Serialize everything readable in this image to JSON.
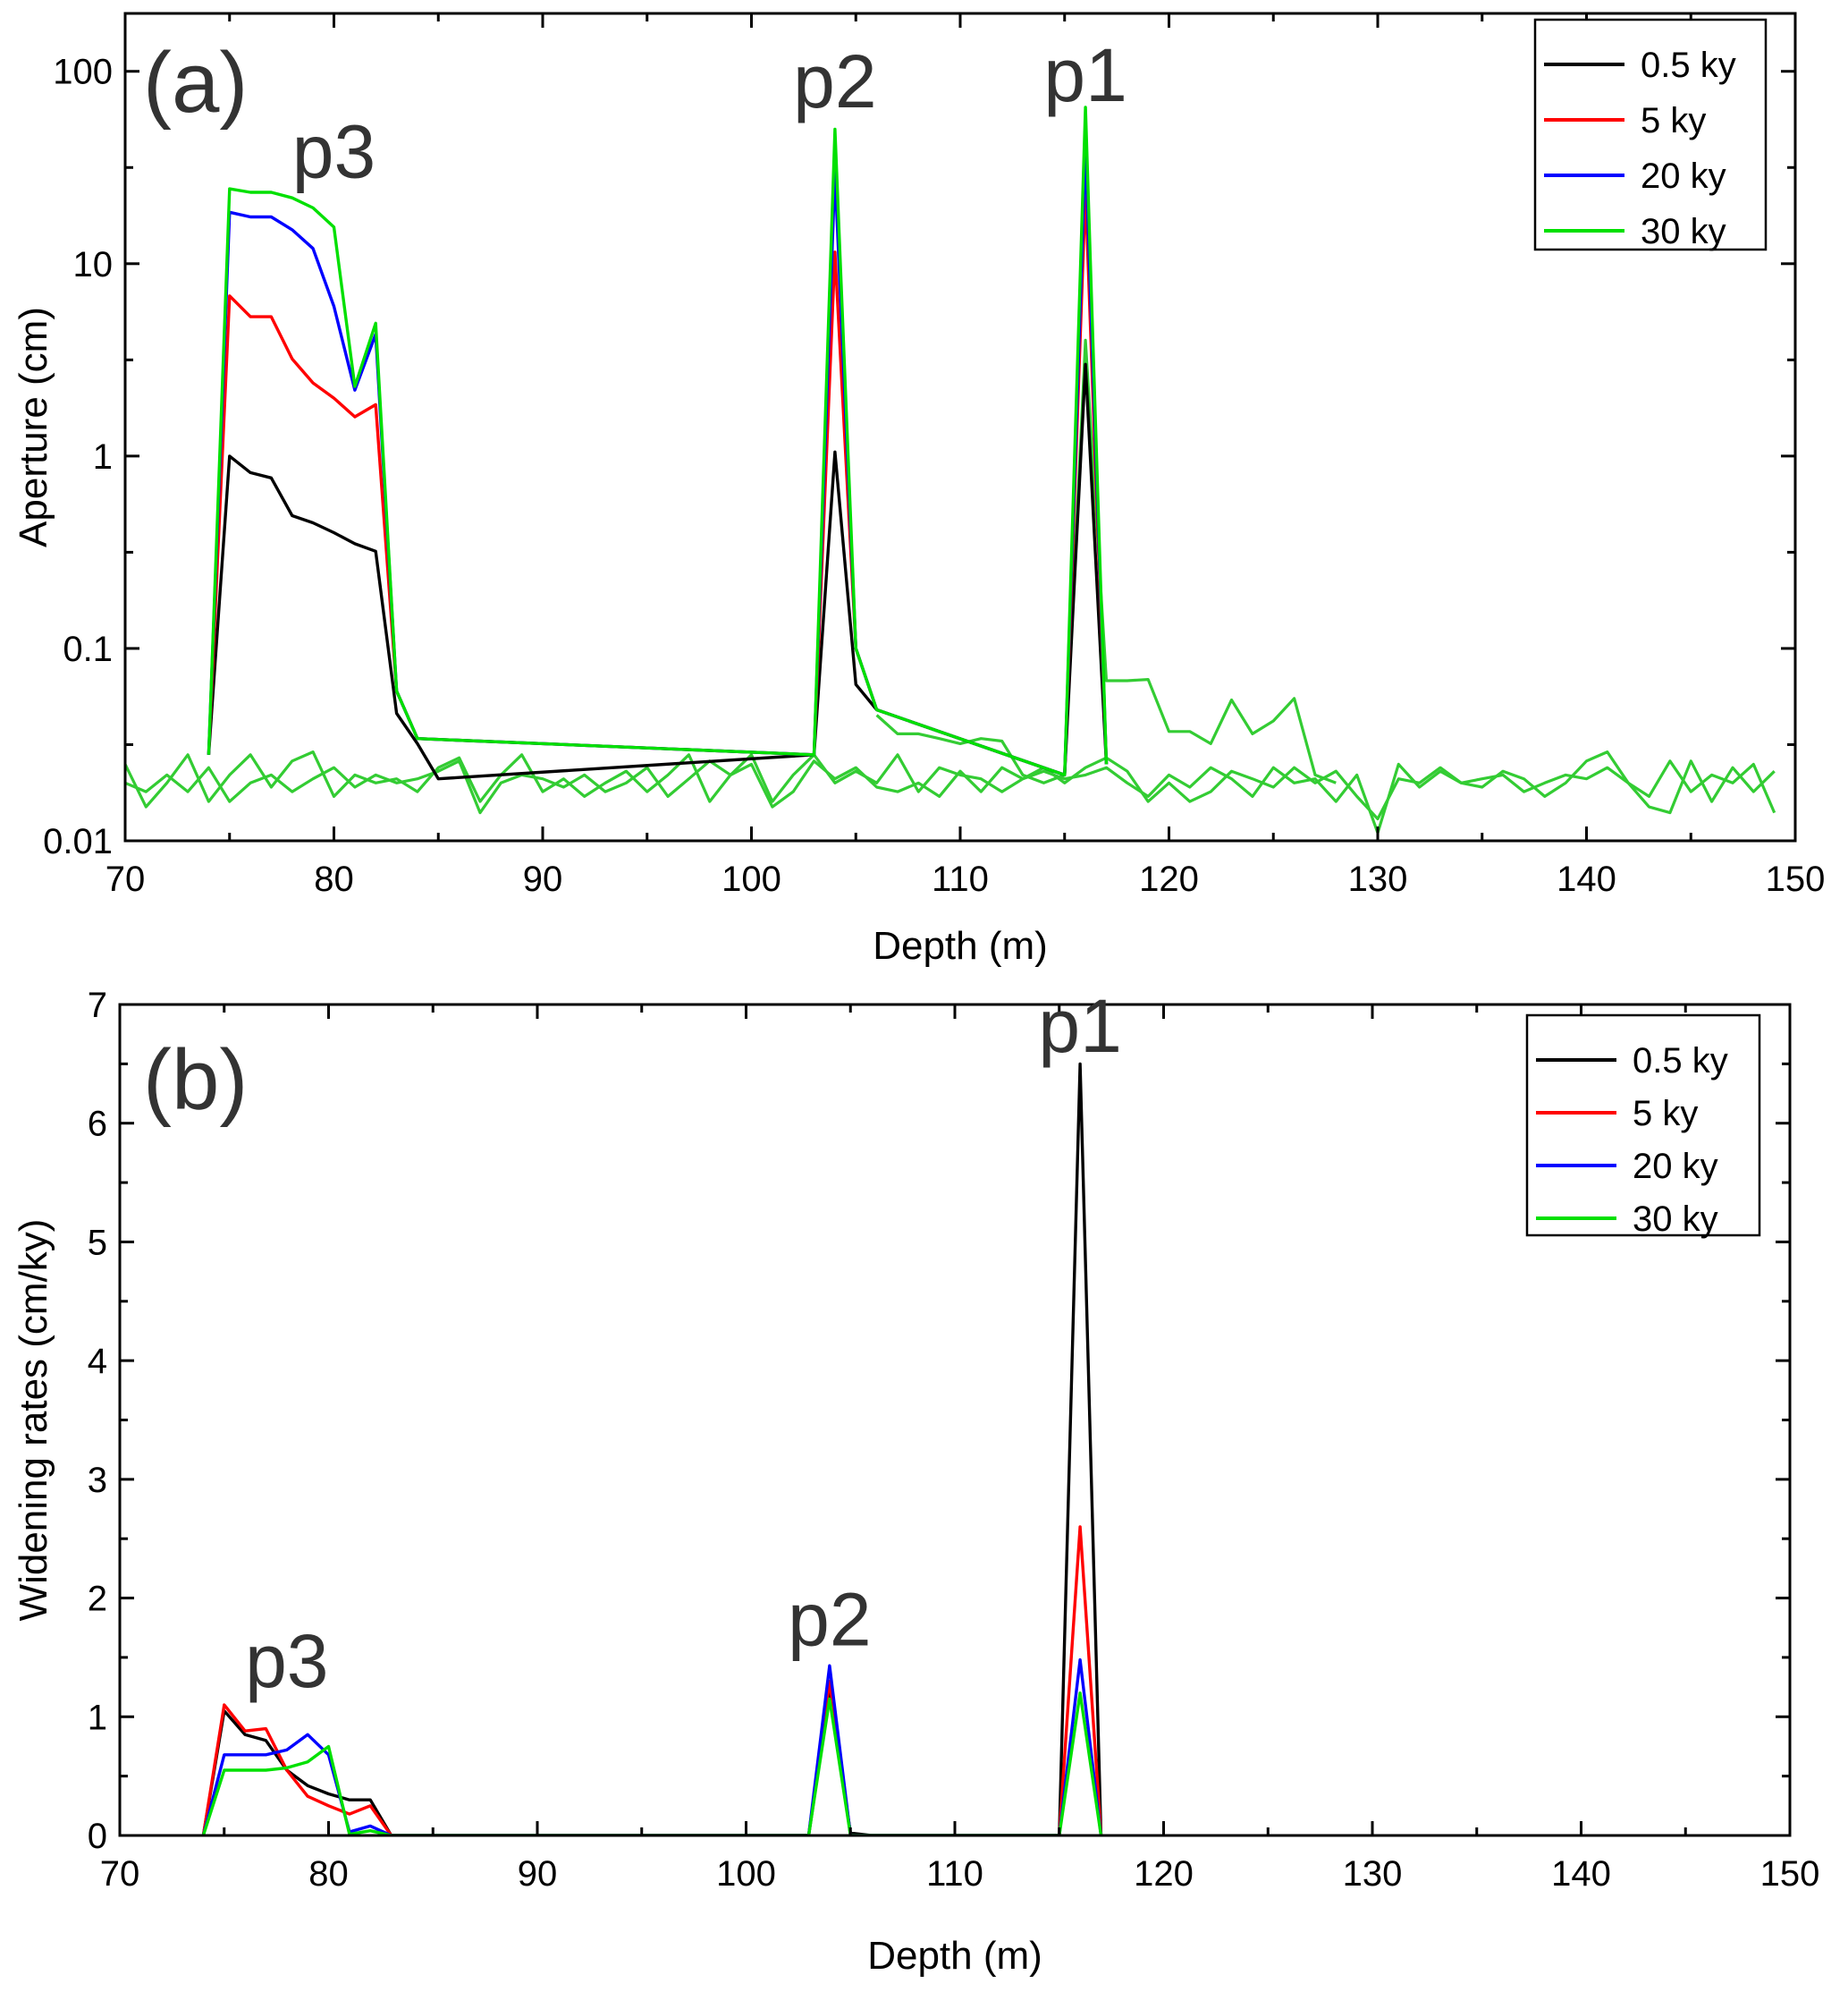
{
  "chart_data": [
    {
      "type": "line",
      "panel_label": "(a)",
      "xlabel": "Depth (m)",
      "ylabel": "Aperture (cm)",
      "xlim": [
        70,
        150
      ],
      "ylim": [
        0.01,
        200
      ],
      "yscale": "log",
      "x_ticks": [
        "70",
        "80",
        "90",
        "100",
        "110",
        "120",
        "130",
        "140",
        "150"
      ],
      "y_ticks": [
        "0.01",
        "0.1",
        "1",
        "10",
        "100"
      ],
      "legend_position": "top-right",
      "annotations": [
        {
          "text": "p3",
          "x": 80,
          "y": 28
        },
        {
          "text": "p2",
          "x": 104,
          "y": 65
        },
        {
          "text": "p1",
          "x": 116,
          "y": 70
        }
      ],
      "series": [
        {
          "name": "0.5 ky",
          "color": "#000000",
          "x": [
            74,
            75,
            76,
            77,
            78,
            79,
            80,
            81,
            82,
            83,
            84,
            85,
            103,
            104,
            105,
            106,
            115,
            116,
            117
          ],
          "values": [
            0.028,
            1.0,
            0.82,
            0.77,
            0.49,
            0.45,
            0.4,
            0.35,
            0.32,
            0.046,
            0.032,
            0.021,
            0.028,
            1.05,
            0.065,
            0.048,
            0.022,
            3.0,
            0.025
          ]
        },
        {
          "name": "5 ky",
          "color": "#ff0000",
          "x": [
            74,
            75,
            76,
            77,
            78,
            79,
            80,
            81,
            82,
            83,
            84,
            103,
            104,
            105,
            106,
            115,
            116,
            117
          ],
          "values": [
            0.028,
            6.8,
            5.3,
            5.3,
            3.2,
            2.4,
            2.0,
            1.6,
            1.85,
            0.06,
            0.034,
            0.028,
            11.5,
            0.1,
            0.048,
            0.022,
            24,
            0.025
          ]
        },
        {
          "name": "20 ky",
          "color": "#0000ff",
          "x": [
            74,
            75,
            76,
            77,
            78,
            79,
            80,
            81,
            82,
            83,
            84,
            103,
            104,
            105,
            106,
            115,
            116,
            117
          ],
          "values": [
            0.028,
            18.5,
            17.5,
            17.5,
            15.0,
            12.0,
            6.0,
            2.2,
            4.3,
            0.06,
            0.034,
            0.028,
            30,
            0.1,
            0.048,
            0.022,
            40,
            0.025
          ]
        },
        {
          "name": "30 ky",
          "color": "#00e000",
          "x": [
            74,
            75,
            76,
            77,
            78,
            79,
            80,
            81,
            82,
            83,
            84,
            103,
            104,
            105,
            106,
            115,
            116,
            117
          ],
          "values": [
            0.028,
            24.5,
            23.5,
            23.5,
            22.0,
            19.5,
            15.5,
            2.3,
            4.9,
            0.06,
            0.034,
            0.028,
            50,
            0.1,
            0.048,
            0.022,
            65,
            0.025
          ]
        }
      ],
      "background_series": [
        {
          "name": "",
          "color": "#33cc33",
          "x": [
            115,
            116,
            117,
            118,
            119,
            120,
            121,
            122,
            123,
            124,
            125,
            126,
            127,
            128
          ],
          "values": [
            0.022,
            4.0,
            0.068,
            0.068,
            0.069,
            0.037,
            0.037,
            0.032,
            0.054,
            0.036,
            0.042,
            0.055,
            0.022,
            0.02
          ]
        },
        {
          "name": "",
          "color": "#33cc33",
          "x": [
            106,
            107,
            108,
            109,
            110,
            111,
            112,
            113,
            114,
            115
          ],
          "values": [
            0.045,
            0.036,
            0.036,
            0.034,
            0.032,
            0.034,
            0.033,
            0.022,
            0.02,
            0.022
          ]
        },
        {
          "name": "",
          "color": "#33cc33",
          "x": [
            70,
            71,
            72,
            73,
            74,
            75,
            76,
            77,
            78,
            79,
            80,
            81,
            82,
            83,
            84,
            85,
            86,
            87,
            88,
            89,
            90,
            91,
            92,
            93,
            94,
            95,
            96,
            97,
            98,
            99,
            100,
            101,
            102,
            103,
            104,
            105,
            106,
            107,
            108,
            109,
            110,
            111,
            112,
            113,
            114,
            115,
            116,
            117,
            118,
            119,
            120,
            121,
            122,
            123,
            124,
            125,
            126,
            127,
            128,
            129,
            130,
            131,
            132,
            133,
            134,
            135,
            136,
            137,
            138,
            139,
            140,
            141,
            142,
            143,
            144,
            145,
            146,
            147,
            148,
            149
          ],
          "values": [
            0.025,
            0.015,
            0.02,
            0.028,
            0.016,
            0.022,
            0.028,
            0.019,
            0.026,
            0.029,
            0.017,
            0.022,
            0.02,
            0.021,
            0.018,
            0.024,
            0.027,
            0.016,
            0.022,
            0.028,
            0.018,
            0.021,
            0.017,
            0.02,
            0.023,
            0.018,
            0.022,
            0.028,
            0.016,
            0.022,
            0.025,
            0.015,
            0.018,
            0.026,
            0.021,
            0.024,
            0.019,
            0.018,
            0.02,
            0.017,
            0.023,
            0.018,
            0.024,
            0.021,
            0.023,
            0.021,
            0.022,
            0.024,
            0.02,
            0.017,
            0.022,
            0.019,
            0.024,
            0.021,
            0.017,
            0.024,
            0.02,
            0.021,
            0.016,
            0.022,
            0.011,
            0.025,
            0.019,
            0.023,
            0.02,
            0.021,
            0.022,
            0.018,
            0.02,
            0.022,
            0.021,
            0.024,
            0.02,
            0.017,
            0.026,
            0.018,
            0.022,
            0.02,
            0.025,
            0.014
          ]
        },
        {
          "name": "",
          "color": "#33cc33",
          "x": [
            70,
            71,
            72,
            73,
            74,
            75,
            76,
            77,
            78,
            79,
            80,
            81,
            82,
            83,
            84,
            85,
            86,
            87,
            88,
            89,
            90,
            91,
            92,
            93,
            94,
            95,
            96,
            97,
            98,
            99,
            100,
            101,
            102,
            103,
            104,
            105,
            106,
            107,
            108,
            109,
            110,
            111,
            112,
            113,
            114,
            115,
            116,
            117,
            118,
            119,
            120,
            121,
            122,
            123,
            124,
            125,
            126,
            127,
            128,
            129,
            130,
            131,
            132,
            133,
            134,
            135,
            136,
            137,
            138,
            139,
            140,
            141,
            142,
            143,
            144,
            145,
            146,
            147,
            148,
            149
          ],
          "values": [
            0.02,
            0.018,
            0.022,
            0.018,
            0.024,
            0.016,
            0.02,
            0.022,
            0.018,
            0.021,
            0.024,
            0.019,
            0.022,
            0.02,
            0.021,
            0.023,
            0.026,
            0.014,
            0.02,
            0.022,
            0.021,
            0.019,
            0.022,
            0.018,
            0.02,
            0.024,
            0.017,
            0.021,
            0.026,
            0.022,
            0.028,
            0.016,
            0.022,
            0.028,
            0.02,
            0.023,
            0.02,
            0.028,
            0.018,
            0.024,
            0.022,
            0.021,
            0.018,
            0.021,
            0.024,
            0.02,
            0.024,
            0.027,
            0.023,
            0.016,
            0.02,
            0.016,
            0.018,
            0.023,
            0.021,
            0.019,
            0.024,
            0.02,
            0.023,
            0.017,
            0.013,
            0.021,
            0.02,
            0.024,
            0.02,
            0.019,
            0.023,
            0.021,
            0.017,
            0.02,
            0.026,
            0.029,
            0.02,
            0.015,
            0.014,
            0.026,
            0.016,
            0.024,
            0.018,
            0.023
          ]
        }
      ]
    },
    {
      "type": "line",
      "panel_label": "(b)",
      "xlabel": "Depth (m)",
      "ylabel": "Widening rates (cm/ky)",
      "xlim": [
        70,
        150
      ],
      "ylim": [
        0,
        7
      ],
      "yscale": "linear",
      "x_ticks": [
        "70",
        "80",
        "90",
        "100",
        "110",
        "120",
        "130",
        "140",
        "150"
      ],
      "y_ticks": [
        "0",
        "1",
        "2",
        "3",
        "4",
        "5",
        "6",
        "7"
      ],
      "legend_position": "top-right",
      "annotations": [
        {
          "text": "p3",
          "x": 78,
          "y": 1.25
        },
        {
          "text": "p2",
          "x": 104,
          "y": 1.6
        },
        {
          "text": "p1",
          "x": 116,
          "y": 6.6
        }
      ],
      "series": [
        {
          "name": "0.5 ky",
          "color": "#000000",
          "x": [
            74,
            75,
            76,
            77,
            78,
            79,
            80,
            81,
            82,
            83,
            103,
            104,
            105,
            106,
            115,
            116,
            117
          ],
          "values": [
            0,
            1.05,
            0.85,
            0.8,
            0.55,
            0.42,
            0.35,
            0.3,
            0.3,
            0,
            0,
            1.2,
            0.02,
            0,
            0,
            6.5,
            0
          ]
        },
        {
          "name": "5  ky",
          "color": "#ff0000",
          "x": [
            74,
            75,
            76,
            77,
            78,
            79,
            80,
            81,
            82,
            83,
            103,
            104,
            105,
            115,
            116,
            117
          ],
          "values": [
            0,
            1.1,
            0.88,
            0.9,
            0.55,
            0.33,
            0.25,
            0.18,
            0.25,
            0,
            0,
            1.3,
            0,
            0,
            2.6,
            0
          ]
        },
        {
          "name": "20 ky",
          "color": "#0000ff",
          "x": [
            74,
            75,
            76,
            77,
            78,
            79,
            80,
            81,
            82,
            83,
            103,
            104,
            105,
            115,
            116,
            117
          ],
          "values": [
            0,
            0.68,
            0.68,
            0.68,
            0.72,
            0.85,
            0.68,
            0.03,
            0.08,
            0,
            0,
            1.43,
            0,
            0,
            1.48,
            0
          ]
        },
        {
          "name": "30 ky",
          "color": "#00e000",
          "x": [
            74,
            75,
            76,
            77,
            78,
            79,
            80,
            81,
            82,
            83,
            103,
            104,
            105,
            115,
            116,
            117
          ],
          "values": [
            0,
            0.55,
            0.55,
            0.55,
            0.57,
            0.62,
            0.75,
            0.01,
            0.04,
            0,
            0,
            1.15,
            0,
            0,
            1.2,
            0
          ]
        }
      ]
    }
  ]
}
